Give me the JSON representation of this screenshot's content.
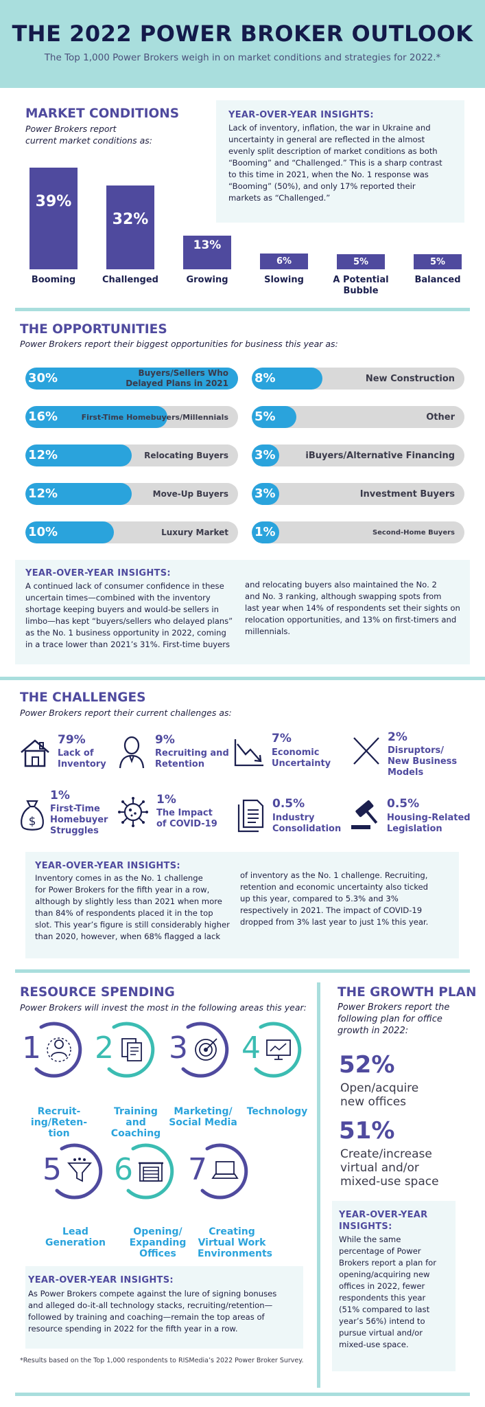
{
  "header": {
    "title": "THE 2022 POWER BROKER OUTLOOK",
    "subtitle": "The Top 1,000 Power Brokers weigh in on market conditions and strategies for 2022.*"
  },
  "market": {
    "title": "MARKET CONDITIONS",
    "subtitle_line1": "Power Brokers report",
    "subtitle_line2": "current market conditions as:",
    "bars": [
      {
        "label": "Booming",
        "pct_label": "39%",
        "value": 39
      },
      {
        "label": "Challenged",
        "pct_label": "32%",
        "value": 32
      },
      {
        "label": "Growing",
        "pct_label": "13%",
        "value": 13
      },
      {
        "label": "Slowing",
        "pct_label": "6%",
        "value": 6
      },
      {
        "label_line1": "A Potential",
        "label_line2": "Bubble",
        "pct_label": "5%",
        "value": 5
      },
      {
        "label": "Balanced",
        "pct_label": "5%",
        "value": 5
      }
    ],
    "insight_head": "YEAR-OVER-YEAR INSIGHTS:",
    "insight_lines": [
      "Lack of inventory, inflation, the war in Ukraine and",
      "uncertainty in general are reflected in the almost",
      "evenly split description of market conditions as both",
      "“Booming” and “Challenged.” This is a sharp contrast",
      "to this time in 2021, when the No. 1 response was",
      "“Booming” (50%), and only 17% reported their",
      "markets as “Challenged.”"
    ]
  },
  "opportunities": {
    "title": "THE OPPORTUNITIES",
    "subtitle": "Power Brokers report their biggest opportunities for business this year as:",
    "left": [
      {
        "pct_label": "30%",
        "value": 30,
        "line1": "Buyers/Sellers Who",
        "line2": "Delayed Plans in 2021"
      },
      {
        "pct_label": "16%",
        "value": 16,
        "line1": "First-Time Homebuyers/Millennials",
        "line2": ""
      },
      {
        "pct_label": "12%",
        "value": 12,
        "line1": "Relocating Buyers",
        "line2": ""
      },
      {
        "pct_label": "12%",
        "value": 12,
        "line1": "Move-Up Buyers",
        "line2": ""
      },
      {
        "pct_label": "10%",
        "value": 10,
        "line1": "Luxury Market",
        "line2": ""
      }
    ],
    "right": [
      {
        "pct_label": "8%",
        "value": 8,
        "line1": "New Construction"
      },
      {
        "pct_label": "5%",
        "value": 5,
        "line1": "Other"
      },
      {
        "pct_label": "3%",
        "value": 3,
        "line1": "iBuyers/Alternative Financing"
      },
      {
        "pct_label": "3%",
        "value": 3,
        "line1": "Investment Buyers"
      },
      {
        "pct_label": "1%",
        "value": 1,
        "line1": "Second-Home Buyers"
      }
    ],
    "insight_head": "YEAR-OVER-YEAR INSIGHTS:",
    "insight_left": [
      "A continued lack of consumer confidence in these",
      "uncertain times—combined with the inventory",
      "shortage keeping buyers and would-be sellers in",
      "limbo—has kept “buyers/sellers who delayed plans”",
      "as the No. 1 business opportunity in 2022, coming",
      "in a trace lower than 2021’s 31%. First-time buyers"
    ],
    "insight_right": [
      "and relocating buyers also maintained the No. 2",
      "and No. 3 ranking, although swapping spots from",
      "last year when 14% of respondents set their sights on",
      "relocation opportunities, and 13% on first-timers and",
      "millennials."
    ]
  },
  "challenges": {
    "title": "THE CHALLENGES",
    "subtitle": "Power Brokers report their current challenges as:",
    "items": [
      {
        "pct": "79%",
        "line1": "Lack of",
        "line2": "Inventory",
        "icon": "house-icon"
      },
      {
        "pct": "9%",
        "line1": "Recruiting and",
        "line2": "Retention",
        "icon": "person-icon"
      },
      {
        "pct": "7%",
        "line1": "Economic",
        "line2": "Uncertainty",
        "icon": "declining-chart-icon"
      },
      {
        "pct": "2%",
        "line1": "Disruptors/",
        "line2": "New Business",
        "line3": "Models",
        "icon": "x-cross-icon"
      },
      {
        "pct": "1%",
        "line1": "First-Time",
        "line2": "Homebuyer",
        "line3": "Struggles",
        "icon": "money-bag-icon"
      },
      {
        "pct": "1%",
        "line1": "The Impact",
        "line2": "of COVID-19",
        "icon": "virus-icon"
      },
      {
        "pct": "0.5%",
        "line1": "Industry",
        "line2": "Consolidation",
        "icon": "documents-icon"
      },
      {
        "pct": "0.5%",
        "line1": "Housing-Related",
        "line2": "Legislation",
        "icon": "gavel-icon"
      }
    ],
    "insight_head": "YEAR-OVER-YEAR INSIGHTS:",
    "insight_left": [
      "Inventory comes in as the No. 1 challenge",
      "for Power Brokers for the fifth year in a row,",
      "although by slightly less than 2021 when more",
      "than 84% of respondents placed it in the top",
      "slot. This year’s figure is still considerably higher",
      "than 2020, however, when 68% flagged a lack"
    ],
    "insight_right": [
      "of inventory as the No. 1 challenge. Recruiting,",
      "retention and economic uncertainty also ticked",
      "up this year, compared to 5.3% and 3%",
      "respectively in 2021. The impact of COVID-19",
      "dropped from 3% last year to just 1% this year."
    ]
  },
  "resource": {
    "title": "RESOURCE SPENDING",
    "subtitle": "Power Brokers will invest the most in the following areas this year:",
    "items": [
      {
        "num": "1",
        "line1": "Recruit-",
        "line2": "ing/Reten-",
        "line3": "tion",
        "icon": "recruit-icon"
      },
      {
        "num": "2",
        "line1": "Training",
        "line2": "and",
        "line3": "Coaching",
        "icon": "training-icon"
      },
      {
        "num": "3",
        "line1": "Marketing/",
        "line2": "Social Media",
        "line3": "",
        "icon": "target-icon"
      },
      {
        "num": "4",
        "line1": "Technology",
        "line2": "",
        "line3": "",
        "icon": "monitor-icon"
      },
      {
        "num": "5",
        "line1": "Lead",
        "line2": "Generation",
        "line3": "",
        "icon": "funnel-icon"
      },
      {
        "num": "6",
        "line1": "Opening/",
        "line2": "Expanding",
        "line3": "Offices",
        "icon": "office-icon"
      },
      {
        "num": "7",
        "line1": "Creating",
        "line2": "Virtual Work",
        "line3": "Environments",
        "icon": "laptop-icon"
      }
    ],
    "insight_head": "YEAR-OVER-YEAR INSIGHTS:",
    "insight_lines": [
      "As Power Brokers compete against the lure of signing bonuses",
      "and alleged do-it-all technology stacks, recruiting/retention—",
      "followed by training and coaching—remain the top areas of",
      "resource spending in 2022 for the fifth year in a row."
    ],
    "footnote": "*Results based on the Top 1,000 respondents to RISMedia’s 2022 Power Broker Survey."
  },
  "growth": {
    "title": "THE GROWTH PLAN",
    "subtitle_lines": [
      "Power Brokers report the",
      "following plan for office",
      "growth in 2022:"
    ],
    "stat1": {
      "pct": "52%",
      "line1": "Open/acquire",
      "line2": "new offices"
    },
    "stat2": {
      "pct": "51%",
      "line1": "Create/increase",
      "line2": "virtual and/or",
      "line3": "mixed-use space"
    },
    "insight_head_1": "YEAR-OVER-YEAR",
    "insight_head_2": "INSIGHTS:",
    "insight_lines": [
      "While the same",
      "percentage of Power",
      "Brokers report a plan for",
      "opening/acquiring new",
      "offices in 2022, fewer",
      "respondents this year",
      "(51% compared to last",
      "year’s 56%)  intend to",
      "pursue virtual and/or",
      "mixed-use space."
    ]
  },
  "colors": {
    "navy": "#141a4a",
    "purple": "#4f4a9e",
    "teal": "#3bbcb2",
    "blue": "#2aa3dc",
    "header_bg": "#a9dedd"
  }
}
